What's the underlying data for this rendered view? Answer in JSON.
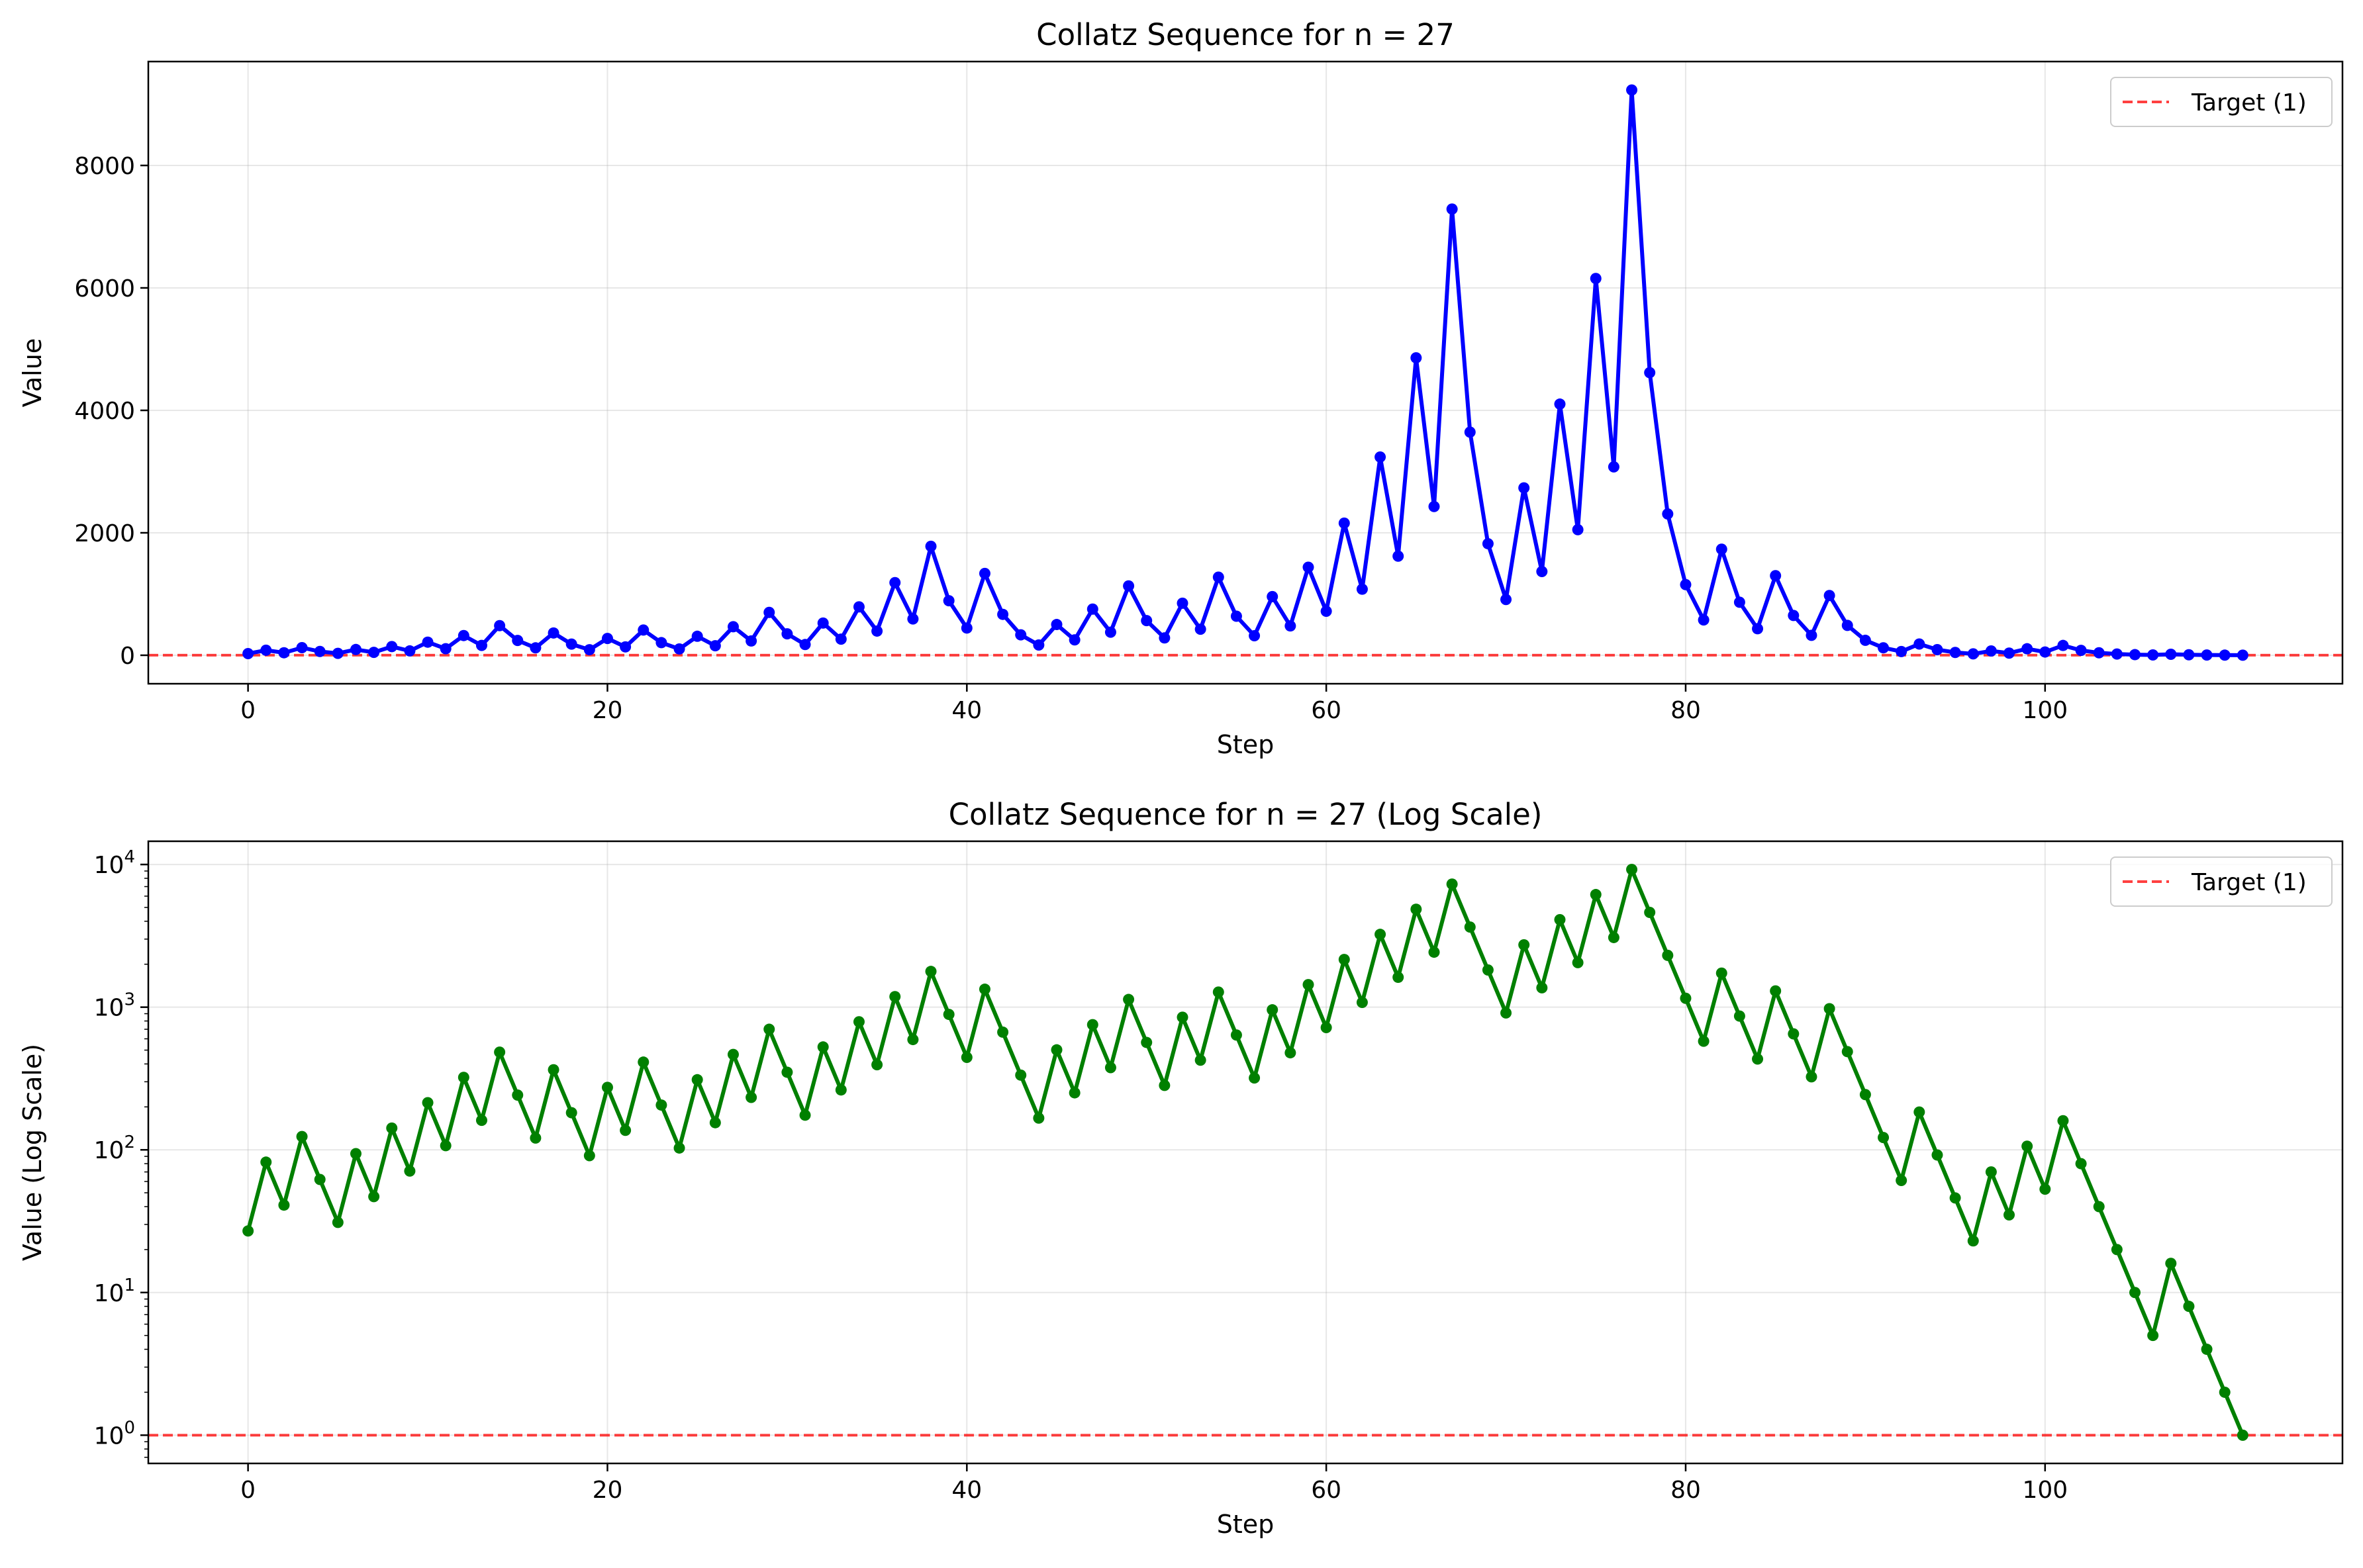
{
  "chart_data": [
    {
      "type": "line",
      "title": "Collatz Sequence for n = 27",
      "xlabel": "Step",
      "ylabel": "Value",
      "yscale": "linear",
      "xlim": [
        -5.55,
        116.55
      ],
      "ylim": [
        -465,
        9697
      ],
      "xticks": [
        0,
        20,
        40,
        60,
        80,
        100
      ],
      "xtick_labels": [
        "0",
        "20",
        "40",
        "60",
        "80",
        "100"
      ],
      "yticks": [
        0,
        2000,
        4000,
        6000,
        8000
      ],
      "ytick_labels": [
        "0",
        "2000",
        "4000",
        "6000",
        "8000"
      ],
      "grid": true,
      "legend_position": "top-right",
      "series": [
        {
          "color": "#0000ff",
          "x": [
            0,
            1,
            2,
            3,
            4,
            5,
            6,
            7,
            8,
            9,
            10,
            11,
            12,
            13,
            14,
            15,
            16,
            17,
            18,
            19,
            20,
            21,
            22,
            23,
            24,
            25,
            26,
            27,
            28,
            29,
            30,
            31,
            32,
            33,
            34,
            35,
            36,
            37,
            38,
            39,
            40,
            41,
            42,
            43,
            44,
            45,
            46,
            47,
            48,
            49,
            50,
            51,
            52,
            53,
            54,
            55,
            56,
            57,
            58,
            59,
            60,
            61,
            62,
            63,
            64,
            65,
            66,
            67,
            68,
            69,
            70,
            71,
            72,
            73,
            74,
            75,
            76,
            77,
            78,
            79,
            80,
            81,
            82,
            83,
            84,
            85,
            86,
            87,
            88,
            89,
            90,
            91,
            92,
            93,
            94,
            95,
            96,
            97,
            98,
            99,
            100,
            101,
            102,
            103,
            104,
            105,
            106,
            107,
            108,
            109,
            110,
            111
          ],
          "values": [
            27,
            82,
            41,
            124,
            62,
            31,
            94,
            47,
            142,
            71,
            214,
            107,
            322,
            161,
            484,
            242,
            121,
            364,
            182,
            91,
            274,
            137,
            412,
            206,
            103,
            310,
            155,
            466,
            233,
            700,
            350,
            175,
            526,
            263,
            790,
            395,
            1186,
            593,
            1780,
            890,
            445,
            1336,
            668,
            334,
            167,
            502,
            251,
            754,
            377,
            1132,
            566,
            283,
            850,
            425,
            1276,
            638,
            319,
            958,
            479,
            1438,
            719,
            2158,
            1079,
            3238,
            1619,
            4858,
            2429,
            7288,
            3644,
            1822,
            911,
            2734,
            1367,
            4102,
            2051,
            6154,
            3077,
            9232,
            4616,
            2308,
            1154,
            577,
            1732,
            866,
            433,
            1300,
            650,
            325,
            976,
            488,
            244,
            122,
            61,
            184,
            92,
            46,
            23,
            70,
            35,
            106,
            53,
            160,
            80,
            40,
            20,
            10,
            5,
            16,
            8,
            4,
            2,
            1
          ]
        }
      ],
      "reference_line": {
        "label": "Target (1)",
        "value": 1,
        "color": "#ff0000"
      }
    },
    {
      "type": "line",
      "title": "Collatz Sequence for n = 27 (Log Scale)",
      "xlabel": "Step",
      "ylabel": "Value (Log Scale)",
      "yscale": "log",
      "xlim": [
        -5.55,
        116.55
      ],
      "ylim": [
        0.634,
        14550
      ],
      "xticks": [
        0,
        20,
        40,
        60,
        80,
        100
      ],
      "xtick_labels": [
        "0",
        "20",
        "40",
        "60",
        "80",
        "100"
      ],
      "yticks": [
        1,
        10,
        100,
        1000,
        10000
      ],
      "ytick_labels": [
        {
          "base": "10",
          "exp": "0"
        },
        {
          "base": "10",
          "exp": "1"
        },
        {
          "base": "10",
          "exp": "2"
        },
        {
          "base": "10",
          "exp": "3"
        },
        {
          "base": "10",
          "exp": "4"
        }
      ],
      "grid": true,
      "legend_position": "top-right",
      "series": [
        {
          "color": "#008000",
          "x": [
            0,
            1,
            2,
            3,
            4,
            5,
            6,
            7,
            8,
            9,
            10,
            11,
            12,
            13,
            14,
            15,
            16,
            17,
            18,
            19,
            20,
            21,
            22,
            23,
            24,
            25,
            26,
            27,
            28,
            29,
            30,
            31,
            32,
            33,
            34,
            35,
            36,
            37,
            38,
            39,
            40,
            41,
            42,
            43,
            44,
            45,
            46,
            47,
            48,
            49,
            50,
            51,
            52,
            53,
            54,
            55,
            56,
            57,
            58,
            59,
            60,
            61,
            62,
            63,
            64,
            65,
            66,
            67,
            68,
            69,
            70,
            71,
            72,
            73,
            74,
            75,
            76,
            77,
            78,
            79,
            80,
            81,
            82,
            83,
            84,
            85,
            86,
            87,
            88,
            89,
            90,
            91,
            92,
            93,
            94,
            95,
            96,
            97,
            98,
            99,
            100,
            101,
            102,
            103,
            104,
            105,
            106,
            107,
            108,
            109,
            110,
            111
          ],
          "values": [
            27,
            82,
            41,
            124,
            62,
            31,
            94,
            47,
            142,
            71,
            214,
            107,
            322,
            161,
            484,
            242,
            121,
            364,
            182,
            91,
            274,
            137,
            412,
            206,
            103,
            310,
            155,
            466,
            233,
            700,
            350,
            175,
            526,
            263,
            790,
            395,
            1186,
            593,
            1780,
            890,
            445,
            1336,
            668,
            334,
            167,
            502,
            251,
            754,
            377,
            1132,
            566,
            283,
            850,
            425,
            1276,
            638,
            319,
            958,
            479,
            1438,
            719,
            2158,
            1079,
            3238,
            1619,
            4858,
            2429,
            7288,
            3644,
            1822,
            911,
            2734,
            1367,
            4102,
            2051,
            6154,
            3077,
            9232,
            4616,
            2308,
            1154,
            577,
            1732,
            866,
            433,
            1300,
            650,
            325,
            976,
            488,
            244,
            122,
            61,
            184,
            92,
            46,
            23,
            70,
            35,
            106,
            53,
            160,
            80,
            40,
            20,
            10,
            5,
            16,
            8,
            4,
            2,
            1
          ]
        }
      ],
      "reference_line": {
        "label": "Target (1)",
        "value": 1,
        "color": "#ff0000"
      }
    }
  ]
}
